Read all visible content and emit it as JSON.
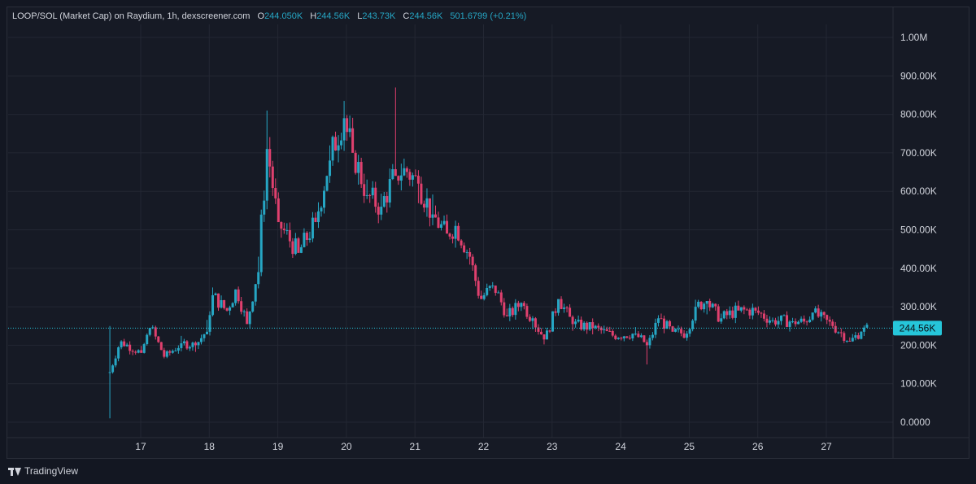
{
  "legend": {
    "symbol": "LOOP/SOL (Market Cap) on Raydium, 1h, dexscreener.com",
    "open_label": "O",
    "open": "244.050K",
    "high_label": "H",
    "high": "244.56K",
    "low_label": "L",
    "low": "243.73K",
    "close_label": "C",
    "close": "244.56K",
    "change": "501.6799 (+0.21%)"
  },
  "footer": {
    "brand": "TradingView"
  },
  "colors": {
    "up": "#26a6c4",
    "down": "#e0406e",
    "grid": "#232733",
    "axis_text": "#d1d4dc",
    "last_price": "#26c6da"
  },
  "chart_data": {
    "type": "candlestick",
    "grid": true,
    "y_scale": "linear",
    "ylim": [
      0,
      1000000
    ],
    "y_ticks": [
      {
        "value": 1000000,
        "label": "1.00M"
      },
      {
        "value": 900000,
        "label": "900.00K"
      },
      {
        "value": 800000,
        "label": "800.00K"
      },
      {
        "value": 700000,
        "label": "700.00K"
      },
      {
        "value": 600000,
        "label": "600.00K"
      },
      {
        "value": 500000,
        "label": "500.00K"
      },
      {
        "value": 400000,
        "label": "400.00K"
      },
      {
        "value": 300000,
        "label": "300.00K"
      },
      {
        "value": 200000,
        "label": "200.00K"
      },
      {
        "value": 100000,
        "label": "100.00K"
      },
      {
        "value": 0,
        "label": "0.0000"
      }
    ],
    "xlim": [
      16.3,
      27.95
    ],
    "x_ticks": [
      {
        "value": 17,
        "label": "17"
      },
      {
        "value": 18,
        "label": "18"
      },
      {
        "value": 19,
        "label": "19"
      },
      {
        "value": 20,
        "label": "20"
      },
      {
        "value": 21,
        "label": "21"
      },
      {
        "value": 22,
        "label": "22"
      },
      {
        "value": 23,
        "label": "23"
      },
      {
        "value": 24,
        "label": "24"
      },
      {
        "value": 25,
        "label": "25"
      },
      {
        "value": 26,
        "label": "26"
      },
      {
        "value": 27,
        "label": "27"
      }
    ],
    "last_price": {
      "value": 244560,
      "label": "244.56K"
    },
    "series_keypoints": [
      {
        "x": 16.55,
        "close": 130000,
        "high": 250000,
        "low": 10000
      },
      {
        "x": 16.7,
        "close": 210000
      },
      {
        "x": 17.0,
        "close": 180000
      },
      {
        "x": 17.15,
        "close": 245000
      },
      {
        "x": 17.35,
        "close": 170000
      },
      {
        "x": 17.6,
        "close": 205000
      },
      {
        "x": 17.8,
        "close": 200000
      },
      {
        "x": 17.95,
        "close": 235000
      },
      {
        "x": 18.05,
        "close": 330000
      },
      {
        "x": 18.25,
        "close": 290000
      },
      {
        "x": 18.4,
        "close": 345000
      },
      {
        "x": 18.55,
        "close": 255000
      },
      {
        "x": 18.7,
        "close": 390000
      },
      {
        "x": 18.85,
        "close": 710000,
        "high": 810000
      },
      {
        "x": 19.0,
        "close": 520000
      },
      {
        "x": 19.3,
        "close": 440000
      },
      {
        "x": 19.55,
        "close": 520000
      },
      {
        "x": 19.75,
        "close": 680000
      },
      {
        "x": 19.95,
        "close": 790000,
        "high": 835000
      },
      {
        "x": 20.1,
        "close": 700000
      },
      {
        "x": 20.3,
        "close": 590000
      },
      {
        "x": 20.5,
        "close": 560000
      },
      {
        "x": 20.7,
        "close": 640000,
        "high": 870000
      },
      {
        "x": 20.85,
        "close": 660000
      },
      {
        "x": 21.05,
        "close": 620000
      },
      {
        "x": 21.25,
        "close": 540000
      },
      {
        "x": 21.45,
        "close": 490000
      },
      {
        "x": 21.6,
        "close": 510000
      },
      {
        "x": 21.8,
        "close": 430000
      },
      {
        "x": 21.95,
        "close": 320000
      },
      {
        "x": 22.15,
        "close": 355000
      },
      {
        "x": 22.35,
        "close": 275000
      },
      {
        "x": 22.55,
        "close": 310000
      },
      {
        "x": 22.7,
        "close": 270000
      },
      {
        "x": 22.9,
        "close": 215000
      },
      {
        "x": 23.1,
        "close": 320000
      },
      {
        "x": 23.3,
        "close": 255000
      },
      {
        "x": 23.6,
        "close": 245000
      },
      {
        "x": 23.9,
        "close": 225000
      },
      {
        "x": 24.2,
        "close": 230000
      },
      {
        "x": 24.4,
        "close": 200000,
        "low": 150000
      },
      {
        "x": 24.55,
        "close": 270000
      },
      {
        "x": 24.75,
        "close": 235000
      },
      {
        "x": 24.95,
        "close": 230000
      },
      {
        "x": 25.1,
        "close": 300000
      },
      {
        "x": 25.25,
        "close": 315000
      },
      {
        "x": 25.45,
        "close": 270000
      },
      {
        "x": 25.7,
        "close": 290000
      },
      {
        "x": 25.95,
        "close": 290000
      },
      {
        "x": 26.2,
        "close": 265000
      },
      {
        "x": 26.5,
        "close": 262000
      },
      {
        "x": 26.7,
        "close": 260000
      },
      {
        "x": 26.8,
        "close": 285000
      },
      {
        "x": 27.1,
        "close": 250000
      },
      {
        "x": 27.35,
        "close": 210000
      },
      {
        "x": 27.5,
        "close": 235000
      },
      {
        "x": 27.62,
        "close": 244560
      }
    ]
  }
}
